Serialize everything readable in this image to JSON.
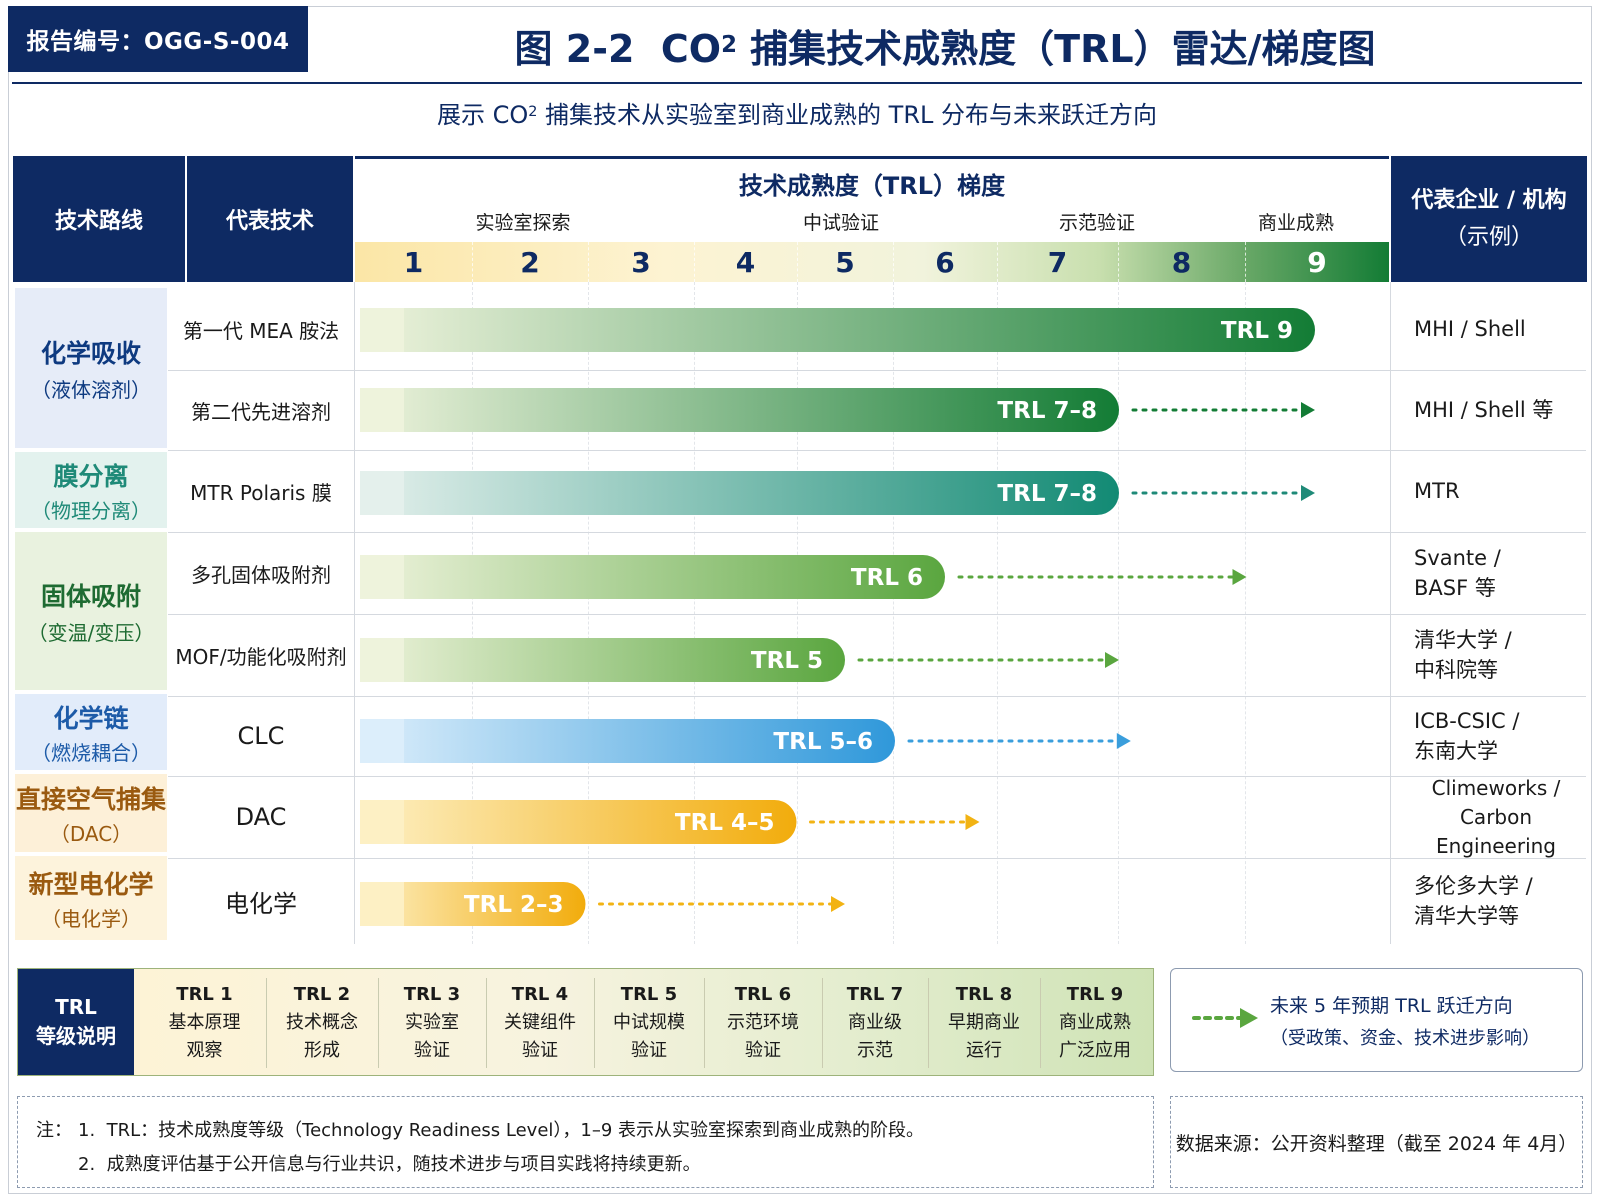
{
  "report": {
    "code": "报告编号：OGG-S-004"
  },
  "header": {
    "title_pre": "图 2-2  CO",
    "title_sub": "2",
    "title_post": " 捕集技术成熟度（TRL）雷达/梯度图",
    "subtitle_pre": "展示 CO",
    "subtitle_sub": "2",
    "subtitle_post": " 捕集技术从实验室到商业成熟的 TRL 分布与未来跃迁方向"
  },
  "table_head": {
    "route": "技术路线",
    "tech": "代表技术",
    "gradient_title": "技术成熟度（TRL）梯度",
    "org_line1": "代表企业 / 机构",
    "org_line2": "（示例）"
  },
  "stages": [
    "实验室探索",
    "中试验证",
    "示范验证",
    "商业成熟"
  ],
  "trl_levels": [
    "1",
    "2",
    "3",
    "4",
    "5",
    "6",
    "7",
    "8",
    "9"
  ],
  "categories": [
    {
      "name": "化学吸收",
      "sub": "（液体溶剂）",
      "color": "#0e3a80",
      "bg": "#e6ecf8"
    },
    {
      "name": "膜分离",
      "sub": "（物理分离）",
      "color": "#1f8a78",
      "bg": "#e3f2ee"
    },
    {
      "name": "固体吸附",
      "sub": "（变温/变压）",
      "color": "#1e6b32",
      "bg": "#e9f2df"
    },
    {
      "name": "化学链",
      "sub": "（燃烧耦合）",
      "color": "#1d5ba8",
      "bg": "#e2ecfa"
    },
    {
      "name": "直接空气捕集",
      "sub": "（DAC）",
      "color": "#9a5a10",
      "bg": "#fdf0d8"
    },
    {
      "name": "新型电化学",
      "sub": "（电化学）",
      "color": "#9a5a10",
      "bg": "#fdf3dc"
    }
  ],
  "colors": {
    "navy": "#0e2a63",
    "green": "#137c35",
    "teal": "#1f8a78",
    "light_green": "#5aa63f",
    "blue": "#3a9edc",
    "amber": "#f2b313"
  },
  "chart_data": {
    "type": "bar",
    "orientation": "horizontal",
    "x_axis": {
      "label": "技术成熟度（TRL）梯度",
      "range": [
        1,
        9
      ],
      "ticks": [
        1,
        2,
        3,
        4,
        5,
        6,
        7,
        8,
        9
      ]
    },
    "rows": [
      {
        "tech": "第一代 MEA 胺法",
        "trl_label": "TRL 9",
        "trl_value": 9,
        "future_target": null,
        "org": "MHI / Shell",
        "style": "green"
      },
      {
        "tech": "第二代先进溶剂",
        "trl_label": "TRL 7–8",
        "trl_value": 7.5,
        "future_target": 9,
        "org": "MHI / Shell 等",
        "style": "green"
      },
      {
        "tech": "MTR Polaris 膜",
        "trl_label": "TRL 7–8",
        "trl_value": 7.5,
        "future_target": 9,
        "org": "MTR",
        "style": "teal"
      },
      {
        "tech": "多孔固体吸附剂",
        "trl_label": "TRL 6",
        "trl_value": 6,
        "future_target": 8.5,
        "org": "Svante /\nBASF 等",
        "style": "lightgreen"
      },
      {
        "tech": "MOF/功能化吸附剂",
        "trl_label": "TRL 5",
        "trl_value": 5,
        "future_target": 7.5,
        "org": "清华大学 /\n中科院等",
        "style": "lightgreen"
      },
      {
        "tech": "CLC",
        "trl_label": "TRL 5–6",
        "trl_value": 5.5,
        "future_target": 7.6,
        "org": "ICB-CSIC /\n东南大学",
        "style": "blue"
      },
      {
        "tech": "DAC",
        "trl_label": "TRL 4–5",
        "trl_value": 4.5,
        "future_target": 6.3,
        "org": "Climeworks /\nCarbon Engineering",
        "style": "amber"
      },
      {
        "tech": "电化学",
        "trl_label": "TRL 2–3",
        "trl_value": 2.5,
        "future_target": 5,
        "org": "多伦多大学 /\n清华大学等",
        "style": "amber"
      }
    ]
  },
  "legend": {
    "head_line1": "TRL",
    "head_line2": "等级说明",
    "items": [
      {
        "t": "TRL 1",
        "a": "基本原理",
        "b": "观察"
      },
      {
        "t": "TRL 2",
        "a": "技术概念",
        "b": "形成"
      },
      {
        "t": "TRL 3",
        "a": "实验室",
        "b": "验证"
      },
      {
        "t": "TRL 4",
        "a": "关键组件",
        "b": "验证"
      },
      {
        "t": "TRL 5",
        "a": "中试规模",
        "b": "验证"
      },
      {
        "t": "TRL 6",
        "a": "示范环境",
        "b": "验证"
      },
      {
        "t": "TRL 7",
        "a": "商业级",
        "b": "示范"
      },
      {
        "t": "TRL 8",
        "a": "早期商业",
        "b": "运行"
      },
      {
        "t": "TRL 9",
        "a": "商业成熟",
        "b": "广泛应用"
      }
    ]
  },
  "future": {
    "line1": "未来 5 年预期 TRL 跃迁方向",
    "line2": "（受政策、资金、技术进步影响）"
  },
  "notes": {
    "label": "注：",
    "line1": "1.  TRL：技术成熟度等级（Technology Readiness Level），1–9 表示从实验室探索到商业成熟的阶段。",
    "line2": "2.  成熟度评估基于公开信息与行业共识，随技术进步与项目实践将持续更新。"
  },
  "source": "数据来源：公开资料整理（截至 2024 年 4月）"
}
